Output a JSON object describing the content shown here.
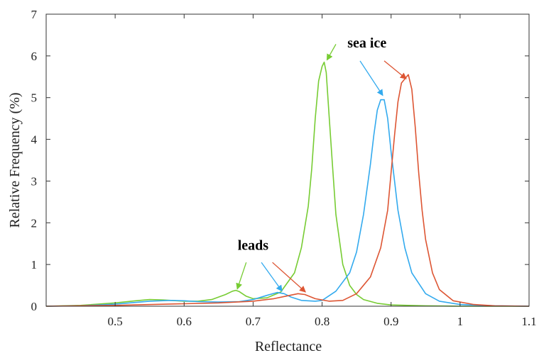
{
  "chart_data": {
    "type": "line",
    "xlabel": "Reflectance",
    "ylabel": "Relative Frequency (%)",
    "xlim": [
      0.4,
      1.1
    ],
    "ylim": [
      0,
      7
    ],
    "xticks": [
      0.5,
      0.6,
      0.7,
      0.8,
      0.9,
      1,
      1.1
    ],
    "xtick_labels": [
      "0.5",
      "0.6",
      "0.7",
      "0.8",
      "0.9",
      "1",
      "1.1"
    ],
    "yticks": [
      0,
      1,
      2,
      3,
      4,
      5,
      6,
      7
    ],
    "ytick_labels": [
      "0",
      "1",
      "2",
      "3",
      "4",
      "5",
      "6",
      "7"
    ],
    "grid": false,
    "series": [
      {
        "color": "#77cc33",
        "x": [
          0.4,
          0.45,
          0.5,
          0.53,
          0.55,
          0.57,
          0.6,
          0.62,
          0.64,
          0.66,
          0.67,
          0.675,
          0.68,
          0.69,
          0.7,
          0.72,
          0.74,
          0.76,
          0.77,
          0.78,
          0.785,
          0.79,
          0.795,
          0.8,
          0.803,
          0.806,
          0.81,
          0.815,
          0.82,
          0.83,
          0.84,
          0.85,
          0.86,
          0.88,
          0.9,
          0.95,
          1.0,
          1.05,
          1.1
        ],
        "y": [
          0.0,
          0.02,
          0.08,
          0.13,
          0.16,
          0.15,
          0.12,
          0.12,
          0.16,
          0.28,
          0.36,
          0.38,
          0.35,
          0.24,
          0.18,
          0.2,
          0.34,
          0.8,
          1.4,
          2.4,
          3.3,
          4.5,
          5.4,
          5.75,
          5.85,
          5.6,
          4.6,
          3.4,
          2.2,
          1.0,
          0.5,
          0.28,
          0.16,
          0.07,
          0.03,
          0.01,
          0.0,
          0.0,
          0.0
        ]
      },
      {
        "color": "#33aaee",
        "x": [
          0.4,
          0.45,
          0.5,
          0.55,
          0.58,
          0.6,
          0.62,
          0.65,
          0.68,
          0.7,
          0.72,
          0.735,
          0.745,
          0.755,
          0.77,
          0.79,
          0.8,
          0.82,
          0.84,
          0.85,
          0.86,
          0.87,
          0.875,
          0.88,
          0.885,
          0.89,
          0.895,
          0.9,
          0.905,
          0.91,
          0.92,
          0.93,
          0.95,
          0.97,
          1.0,
          1.05,
          1.1
        ],
        "y": [
          0.0,
          0.01,
          0.05,
          0.12,
          0.14,
          0.13,
          0.11,
          0.1,
          0.11,
          0.16,
          0.26,
          0.33,
          0.3,
          0.22,
          0.14,
          0.12,
          0.14,
          0.36,
          0.8,
          1.3,
          2.2,
          3.4,
          4.1,
          4.7,
          4.95,
          4.95,
          4.5,
          3.7,
          3.0,
          2.3,
          1.4,
          0.8,
          0.3,
          0.12,
          0.04,
          0.01,
          0.0
        ]
      },
      {
        "color": "#dd5533",
        "x": [
          0.4,
          0.5,
          0.6,
          0.65,
          0.7,
          0.73,
          0.75,
          0.765,
          0.775,
          0.79,
          0.81,
          0.83,
          0.85,
          0.87,
          0.885,
          0.895,
          0.9,
          0.905,
          0.91,
          0.915,
          0.92,
          0.925,
          0.93,
          0.935,
          0.94,
          0.945,
          0.95,
          0.96,
          0.97,
          0.99,
          1.02,
          1.05,
          1.1
        ],
        "y": [
          0.0,
          0.02,
          0.06,
          0.08,
          0.12,
          0.18,
          0.25,
          0.3,
          0.28,
          0.18,
          0.12,
          0.14,
          0.3,
          0.7,
          1.4,
          2.3,
          3.2,
          4.1,
          4.9,
          5.35,
          5.45,
          5.55,
          5.2,
          4.3,
          3.2,
          2.3,
          1.6,
          0.8,
          0.4,
          0.13,
          0.04,
          0.01,
          0.0
        ]
      }
    ],
    "annotations": [
      {
        "text": "sea ice",
        "x": 0.865,
        "y": 6.2,
        "arrows": [
          {
            "color": "#77cc33",
            "from": [
              0.82,
              6.28
            ],
            "to": [
              0.807,
              5.9
            ]
          },
          {
            "color": "#33aaee",
            "from": [
              0.855,
              5.88
            ],
            "to": [
              0.888,
              5.05
            ]
          },
          {
            "color": "#dd5533",
            "from": [
              0.89,
              5.88
            ],
            "to": [
              0.922,
              5.45
            ]
          }
        ]
      },
      {
        "text": "leads",
        "x": 0.7,
        "y": 1.35,
        "arrows": [
          {
            "color": "#77cc33",
            "from": [
              0.69,
              1.05
            ],
            "to": [
              0.677,
              0.41
            ]
          },
          {
            "color": "#33aaee",
            "from": [
              0.712,
              1.05
            ],
            "to": [
              0.742,
              0.36
            ]
          },
          {
            "color": "#dd5533",
            "from": [
              0.728,
              1.05
            ],
            "to": [
              0.776,
              0.34
            ]
          }
        ]
      }
    ]
  }
}
